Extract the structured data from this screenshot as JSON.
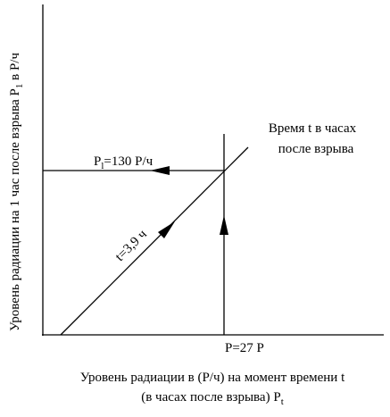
{
  "axes": {
    "y_label": {
      "text": "Уровень радиации на 1 час после взрыва P",
      "sub": "1",
      "after": " в Р/ч"
    },
    "x_label": {
      "line1": "Уровень радиации в (Р/ч) на момент времени t",
      "line2": "(в часах после взрыва) P",
      "line2_sub": "t"
    }
  },
  "annotations": {
    "p1": {
      "text": "P",
      "sub": "l",
      "after": "=130 Р/ч"
    },
    "time_line": "t=3,9 ч",
    "time_title": {
      "line1": "Время t в часах",
      "line2": "после взрыва"
    },
    "p_value": "P=27 Р"
  }
}
